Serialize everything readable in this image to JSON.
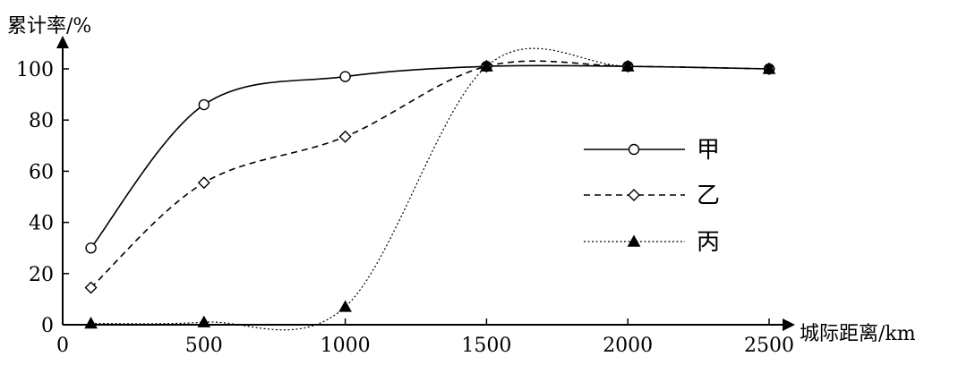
{
  "chart_data": {
    "type": "line",
    "xlabel": "城际距离/km",
    "ylabel": "累计率/%",
    "xlim": [
      0,
      2500
    ],
    "ylim": [
      0,
      100
    ],
    "x_ticks": [
      "0",
      "500",
      "1000",
      "1500",
      "2000",
      "2500"
    ],
    "y_ticks": [
      "0",
      "20",
      "40",
      "60",
      "80",
      "100"
    ],
    "grid": false,
    "legend": {
      "placement": "center-right"
    },
    "series": [
      {
        "name": "甲",
        "marker": "open-circle",
        "line_style": "solid",
        "x": [
          100,
          500,
          1000,
          1500,
          2000,
          2500
        ],
        "y": [
          30,
          86,
          97,
          101,
          101,
          100
        ]
      },
      {
        "name": "乙",
        "marker": "open-diamond",
        "line_style": "dashed",
        "x": [
          100,
          500,
          1000,
          1500,
          2000,
          2500
        ],
        "y": [
          14.5,
          55.5,
          73.5,
          101,
          101,
          100
        ]
      },
      {
        "name": "丙",
        "marker": "filled-triangle",
        "line_style": "dotted",
        "x": [
          100,
          500,
          1000,
          1500,
          2000,
          2500
        ],
        "y": [
          0.5,
          1,
          7,
          101,
          101,
          100
        ]
      }
    ]
  }
}
